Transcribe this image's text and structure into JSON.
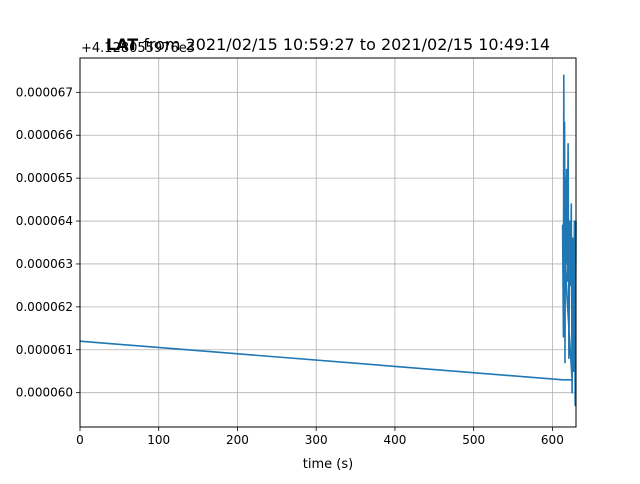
{
  "chart_data": {
    "type": "line",
    "title_bold": "LAT",
    "title_rest": " from 2021/02/15 10:59:27 to 2021/02/15 10:49:14",
    "offset_label": "+4.128055976e3",
    "xlabel": "time (s)",
    "ylabel": "",
    "xlim": [
      0,
      630
    ],
    "ylim": [
      5.92e-05,
      6.78e-05
    ],
    "grid": true,
    "x_ticks": [
      0,
      100,
      200,
      300,
      400,
      500,
      600
    ],
    "x_tick_labels": [
      "0",
      "100",
      "200",
      "300",
      "400",
      "500",
      "600"
    ],
    "y_ticks": [
      6e-05,
      6.1e-05,
      6.2e-05,
      6.3e-05,
      6.4e-05,
      6.5e-05,
      6.6e-05,
      6.7e-05
    ],
    "y_tick_labels": [
      "0.000060",
      "0.000061",
      "0.000062",
      "0.000063",
      "0.000064",
      "0.000065",
      "0.000066",
      "0.000067"
    ],
    "line_color": "#1f77b4",
    "series": [
      {
        "x": [
          0,
          613,
          625,
          613,
          614,
          614.5,
          615,
          615.5,
          616,
          616.5,
          617,
          618,
          619,
          620,
          621,
          622,
          623,
          624,
          625,
          626,
          627,
          628,
          629,
          630
        ],
        "y": [
          6.12e-05,
          6.03e-05,
          6.03e-05,
          6.39e-05,
          6.13e-05,
          6.74e-05,
          6.2e-05,
          6.63e-05,
          6.07e-05,
          6.5e-05,
          6.3e-05,
          6.52e-05,
          6.26e-05,
          6.58e-05,
          6.08e-05,
          6.4e-05,
          6.25e-05,
          6.44e-05,
          6e-05,
          6.36e-05,
          6.05e-05,
          6.4e-05,
          5.97e-05,
          6.4e-05
        ]
      }
    ]
  }
}
